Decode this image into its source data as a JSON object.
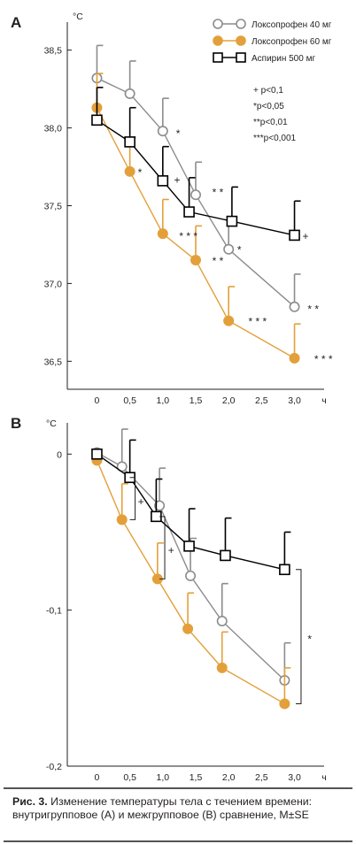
{
  "colors": {
    "loxo40": "#8c8c8c",
    "loxo60": "#e3a03a",
    "aspirin": "#000000",
    "axis": "#231f20"
  },
  "chart_data": [
    {
      "type": "line",
      "panel_letter": "A",
      "unit": "°C",
      "x_unit": "ч",
      "x_ticks": [
        "0",
        "0,5",
        "1,0",
        "1,5",
        "2,0",
        "2,5",
        "3,0"
      ],
      "y_ticks": [
        "38,5",
        "38,0",
        "37,5",
        "37,0",
        "36,5"
      ],
      "xlim": [
        -0.45,
        3.45
      ],
      "ylim": [
        36.32,
        38.68
      ],
      "grid": false,
      "legend_position": "top-right",
      "series": [
        {
          "name": "Локсопрофен 40 мг",
          "marker": "open-circle",
          "x": [
            0,
            0.5,
            1.0,
            1.5,
            2.0,
            3.0
          ],
          "y": [
            38.32,
            38.22,
            37.98,
            37.57,
            37.22,
            36.85
          ],
          "err": [
            0.21,
            0.21,
            0.21,
            0.21,
            0.21,
            0.21
          ]
        },
        {
          "name": "Локсопрофен 60 мг",
          "marker": "filled-circle",
          "x": [
            0,
            0.5,
            1.0,
            1.5,
            2.0,
            3.0
          ],
          "y": [
            38.13,
            37.72,
            37.32,
            37.15,
            36.76,
            36.52
          ],
          "err": [
            0.22,
            0.22,
            0.22,
            0.22,
            0.22,
            0.22
          ]
        },
        {
          "name": "Аспирин 500 мг",
          "marker": "open-square",
          "x": [
            0,
            0.5,
            1.0,
            1.4,
            2.05,
            3.0
          ],
          "y": [
            38.05,
            37.91,
            37.66,
            37.46,
            37.4,
            37.31
          ],
          "err": [
            0.21,
            0.22,
            0.22,
            0.22,
            0.22,
            0.22
          ]
        }
      ],
      "annotations": [
        {
          "text": "*",
          "x": 1.2,
          "y": 37.97
        },
        {
          "text": "*",
          "x": 0.62,
          "y": 37.72
        },
        {
          "text": "+",
          "x": 1.17,
          "y": 37.67
        },
        {
          "text": "* *",
          "x": 1.75,
          "y": 37.59
        },
        {
          "text": "* * *",
          "x": 1.25,
          "y": 37.31
        },
        {
          "text": "* *",
          "x": 1.75,
          "y": 37.15
        },
        {
          "text": "*",
          "x": 2.13,
          "y": 37.22
        },
        {
          "text": "* * *",
          "x": 2.3,
          "y": 36.76
        },
        {
          "text": "+",
          "x": 3.12,
          "y": 37.31
        },
        {
          "text": "* *",
          "x": 3.2,
          "y": 36.84
        },
        {
          "text": "* * *",
          "x": 3.3,
          "y": 36.52
        }
      ],
      "significance_key": [
        "+ p<0,1",
        "*p<0,05",
        "**p<0,01",
        "***p<0,001"
      ]
    },
    {
      "type": "line",
      "panel_letter": "B",
      "unit": "°C",
      "x_unit": "ч",
      "x_ticks": [
        "0",
        "0,5",
        "1,0",
        "1,5",
        "2,0",
        "2,5",
        "3,0"
      ],
      "y_ticks": [
        "0",
        "-0,1",
        "-0,2"
      ],
      "xlim": [
        -0.45,
        3.45
      ],
      "ylim": [
        -0.2,
        0.02
      ],
      "grid": false,
      "series": [
        {
          "name": "Локсопрофен 40 мг",
          "marker": "open-circle",
          "x": [
            0,
            0.38,
            0.95,
            1.42,
            1.9,
            2.85
          ],
          "y": [
            0.001,
            -0.008,
            -0.033,
            -0.078,
            -0.107,
            -0.145
          ],
          "err": [
            0.0,
            0.024,
            0.024,
            0.024,
            0.024,
            0.024
          ]
        },
        {
          "name": "Локсопрофен 60 мг",
          "marker": "filled-circle",
          "x": [
            0,
            0.38,
            0.92,
            1.38,
            1.9,
            2.85
          ],
          "y": [
            -0.004,
            -0.042,
            -0.08,
            -0.112,
            -0.137,
            -0.16
          ],
          "err": [
            0.0,
            0.023,
            0.023,
            0.023,
            0.023,
            0.023
          ]
        },
        {
          "name": "Аспирин 500 мг",
          "marker": "open-square",
          "x": [
            0,
            0.5,
            0.9,
            1.4,
            1.95,
            2.85
          ],
          "y": [
            0.0,
            -0.015,
            -0.04,
            -0.059,
            -0.065,
            -0.074
          ],
          "err": [
            0.0,
            0.024,
            0.024,
            0.024,
            0.024,
            0.024
          ]
        }
      ],
      "annotations": [
        {
          "text": "+",
          "x": 0.62,
          "y": -0.03
        },
        {
          "text": "+",
          "x": 1.08,
          "y": -0.061
        },
        {
          "text": "*",
          "x": 3.2,
          "y": -0.118
        }
      ]
    }
  ],
  "caption": {
    "label": "Рис. 3.",
    "text": " Изменение температуры тела с течением времени: внутригрупповое (A) и межгрупповое (B) сравнение, M±SE"
  }
}
